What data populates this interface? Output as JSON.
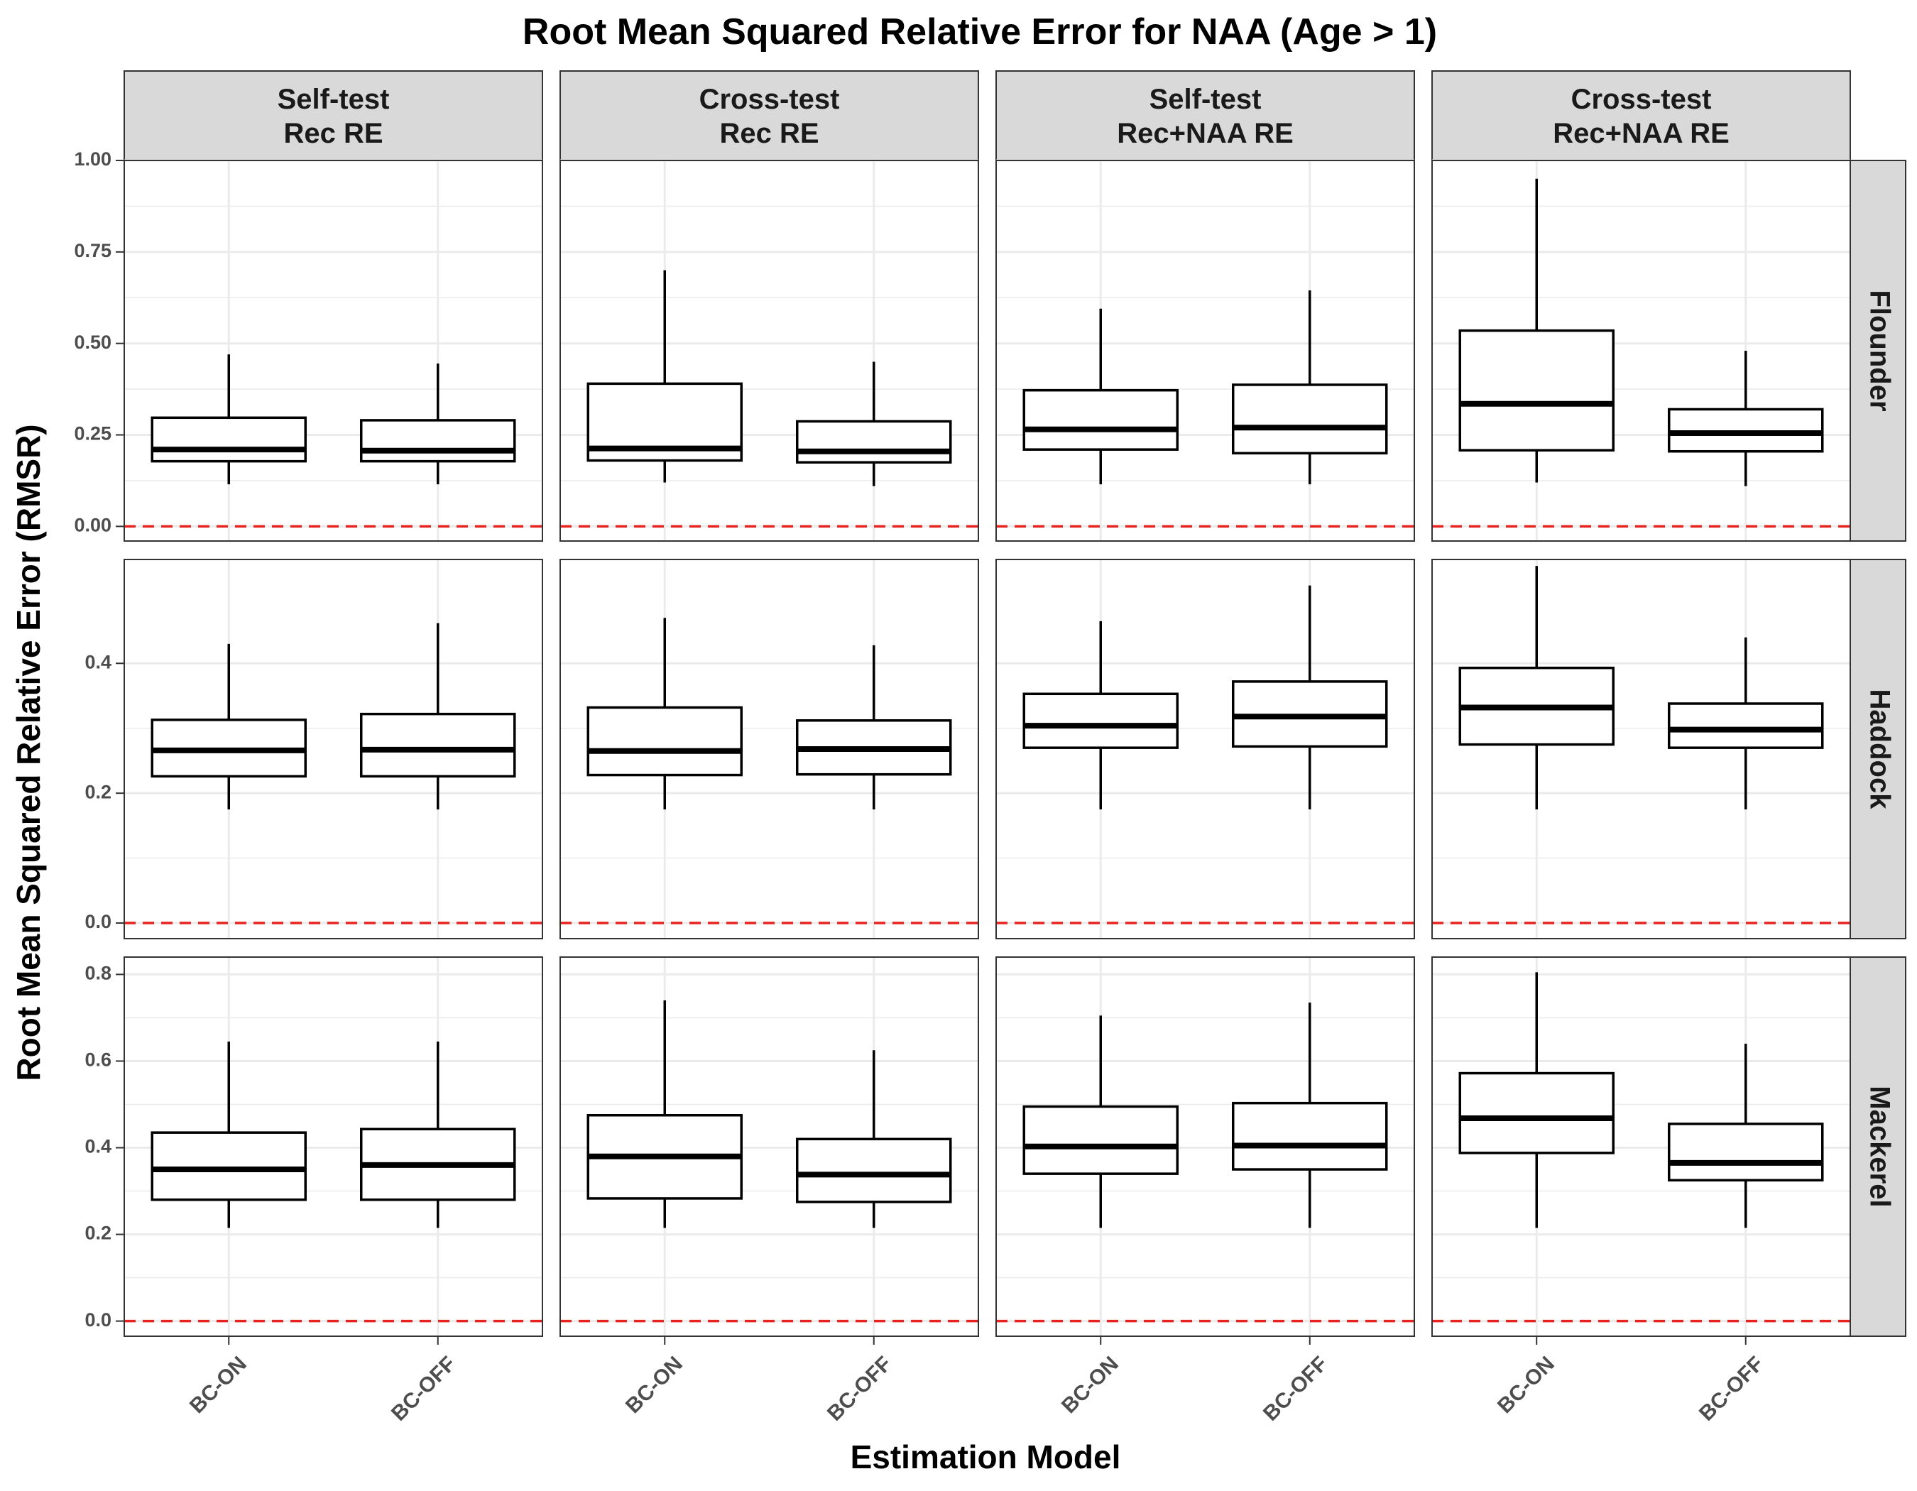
{
  "chart_data": {
    "type": "boxplot",
    "title": "Root Mean Squared Relative Error for NAA (Age > 1)",
    "xlabel": "Estimation Model",
    "ylabel": "Root Mean Squared Relative Error (RMSR)",
    "categories": [
      "BC-ON",
      "BC-OFF"
    ],
    "columns": [
      "Self-test\nRec RE",
      "Cross-test\nRec RE",
      "Self-test\nRec+NAA RE",
      "Cross-test\nRec+NAA RE"
    ],
    "rows": [
      {
        "name": "Flounder",
        "ylim": [
          -0.04,
          1.0
        ],
        "yticks": [
          "0.00",
          "0.25",
          "0.50",
          "0.75",
          "1.00"
        ],
        "panels": [
          [
            {
              "min": 0.115,
              "q1": 0.178,
              "median": 0.21,
              "q3": 0.297,
              "max": 0.47
            },
            {
              "min": 0.115,
              "q1": 0.178,
              "median": 0.207,
              "q3": 0.29,
              "max": 0.445
            }
          ],
          [
            {
              "min": 0.12,
              "q1": 0.18,
              "median": 0.213,
              "q3": 0.39,
              "max": 0.7
            },
            {
              "min": 0.11,
              "q1": 0.175,
              "median": 0.205,
              "q3": 0.287,
              "max": 0.45
            }
          ],
          [
            {
              "min": 0.115,
              "q1": 0.21,
              "median": 0.265,
              "q3": 0.372,
              "max": 0.595
            },
            {
              "min": 0.115,
              "q1": 0.2,
              "median": 0.27,
              "q3": 0.387,
              "max": 0.645
            }
          ],
          [
            {
              "min": 0.12,
              "q1": 0.208,
              "median": 0.335,
              "q3": 0.535,
              "max": 0.95
            },
            {
              "min": 0.11,
              "q1": 0.205,
              "median": 0.255,
              "q3": 0.32,
              "max": 0.48
            }
          ]
        ]
      },
      {
        "name": "Haddock",
        "ylim": [
          -0.024,
          0.56
        ],
        "yticks": [
          "0.0",
          "0.2",
          "0.4"
        ],
        "panels": [
          [
            {
              "min": 0.175,
              "q1": 0.226,
              "median": 0.266,
              "q3": 0.313,
              "max": 0.43
            },
            {
              "min": 0.175,
              "q1": 0.226,
              "median": 0.267,
              "q3": 0.322,
              "max": 0.462
            }
          ],
          [
            {
              "min": 0.175,
              "q1": 0.228,
              "median": 0.265,
              "q3": 0.332,
              "max": 0.47
            },
            {
              "min": 0.175,
              "q1": 0.229,
              "median": 0.268,
              "q3": 0.312,
              "max": 0.428
            }
          ],
          [
            {
              "min": 0.175,
              "q1": 0.27,
              "median": 0.304,
              "q3": 0.353,
              "max": 0.465
            },
            {
              "min": 0.175,
              "q1": 0.272,
              "median": 0.318,
              "q3": 0.372,
              "max": 0.52
            }
          ],
          [
            {
              "min": 0.175,
              "q1": 0.275,
              "median": 0.332,
              "q3": 0.393,
              "max": 0.55
            },
            {
              "min": 0.175,
              "q1": 0.27,
              "median": 0.298,
              "q3": 0.338,
              "max": 0.44
            }
          ]
        ]
      },
      {
        "name": "Mackerel",
        "ylim": [
          -0.035,
          0.84
        ],
        "yticks": [
          "0.0",
          "0.2",
          "0.4",
          "0.6",
          "0.8"
        ],
        "panels": [
          [
            {
              "min": 0.215,
              "q1": 0.28,
              "median": 0.35,
              "q3": 0.435,
              "max": 0.645
            },
            {
              "min": 0.215,
              "q1": 0.28,
              "median": 0.36,
              "q3": 0.443,
              "max": 0.645
            }
          ],
          [
            {
              "min": 0.215,
              "q1": 0.283,
              "median": 0.38,
              "q3": 0.475,
              "max": 0.74
            },
            {
              "min": 0.215,
              "q1": 0.275,
              "median": 0.338,
              "q3": 0.42,
              "max": 0.625
            }
          ],
          [
            {
              "min": 0.215,
              "q1": 0.34,
              "median": 0.403,
              "q3": 0.495,
              "max": 0.705
            },
            {
              "min": 0.215,
              "q1": 0.35,
              "median": 0.405,
              "q3": 0.503,
              "max": 0.735
            }
          ],
          [
            {
              "min": 0.215,
              "q1": 0.388,
              "median": 0.468,
              "q3": 0.572,
              "max": 0.805
            },
            {
              "min": 0.215,
              "q1": 0.325,
              "median": 0.365,
              "q3": 0.455,
              "max": 0.64
            }
          ]
        ]
      }
    ],
    "reference_line": {
      "y": 0,
      "color": "#e8221e",
      "style": "dashed"
    },
    "grid": true,
    "colors": {
      "panel_border": "#333333",
      "strip_fill": "#d9d9d9",
      "grid": "#ebebeb",
      "box": "#000000"
    }
  }
}
